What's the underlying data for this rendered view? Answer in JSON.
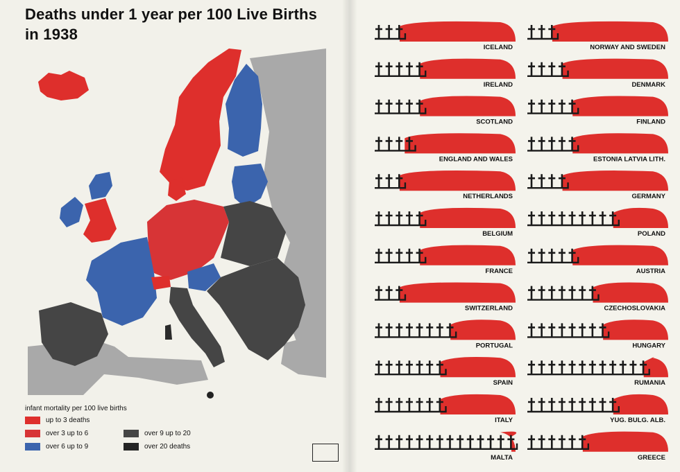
{
  "title_line1": "Deaths under 1 year per 100 Live Births",
  "title_line2": "in 1938",
  "colors": {
    "up_to_3": "#de2f2c",
    "over_3_to_6": "#d73436",
    "over_6_to_9": "#3b64ad",
    "over_9_to_20": "#454545",
    "over_20": "#242424",
    "neutral": "#a9a9a9",
    "sea": "#f2f1ea"
  },
  "legend": {
    "title": "infant mortality per 100 live births",
    "items": [
      {
        "label": "up to 3 deaths",
        "color": "#de2f2c"
      },
      {
        "label": "over 3 up to 6",
        "color": "#d73436"
      },
      {
        "label": "over 6 up to 9",
        "color": "#3b64ad"
      },
      {
        "label": "over 9 up to 20",
        "color": "#454545"
      },
      {
        "label": "over 20 deaths",
        "color": "#242424"
      }
    ]
  },
  "chart_data": {
    "type": "bar",
    "unit_icon": "cross-icon",
    "fill_icon": "red-crowd",
    "categories": [
      "ICELAND",
      "NORWAY AND SWEDEN",
      "IRELAND",
      "DENMARK",
      "SCOTLAND",
      "FINLAND",
      "ENGLAND AND WALES",
      "ESTONIA LATVIA LITH.",
      "NETHERLANDS",
      "GERMANY",
      "BELGIUM",
      "POLAND",
      "FRANCE",
      "AUSTRIA",
      "SWITZERLAND",
      "CZECHOSLOVAKIA",
      "PORTUGAL",
      "HUNGARY",
      "SPAIN",
      "RUMANIA",
      "ITALY",
      "YUG. BULG. ALB.",
      "MALTA",
      "GREECE"
    ],
    "values": [
      3,
      3,
      5,
      4,
      5,
      5,
      3.5,
      5,
      3,
      4,
      5,
      9,
      5,
      5,
      3,
      7,
      8,
      8,
      7,
      12,
      7,
      9,
      14,
      6
    ],
    "bar_total_units": 14
  }
}
